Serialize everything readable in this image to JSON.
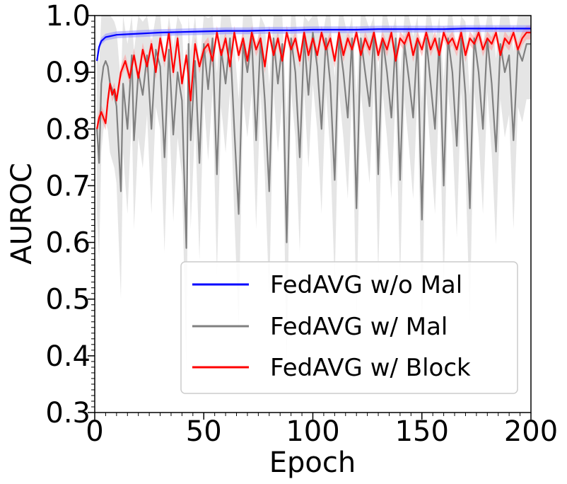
{
  "chart_data": {
    "type": "line",
    "xlabel": "Epoch",
    "ylabel": "AUROC",
    "xlim": [
      0,
      200
    ],
    "ylim": [
      0.3,
      1.0
    ],
    "xticks": [
      0,
      50,
      100,
      150,
      200
    ],
    "yticks": [
      0.3,
      0.4,
      0.5,
      0.6,
      0.7,
      0.8,
      0.9,
      1.0
    ],
    "xtick_labels": [
      "0",
      "50",
      "100",
      "150",
      "200"
    ],
    "ytick_labels": [
      "0.3",
      "0.4",
      "0.5",
      "0.6",
      "0.7",
      "0.8",
      "0.9",
      "1.0"
    ],
    "legend_position": "lower-right",
    "series": [
      {
        "name": "FedAVG w/o Mal",
        "color": "#0000ff",
        "band_color": "#9090ff",
        "x": [
          1,
          2,
          3,
          5,
          10,
          15,
          20,
          25,
          30,
          40,
          50,
          60,
          70,
          80,
          90,
          100,
          110,
          120,
          130,
          140,
          150,
          160,
          170,
          180,
          190,
          200
        ],
        "values": [
          0.92,
          0.945,
          0.955,
          0.962,
          0.966,
          0.967,
          0.968,
          0.969,
          0.97,
          0.971,
          0.972,
          0.973,
          0.973,
          0.974,
          0.974,
          0.975,
          0.975,
          0.975,
          0.976,
          0.976,
          0.976,
          0.976,
          0.977,
          0.977,
          0.977,
          0.977
        ]
      },
      {
        "name": "FedAVG w/ Mal",
        "color": "#808080",
        "band_color": "#d3d3d3",
        "x": [
          1,
          2,
          3,
          4,
          5,
          6,
          7,
          8,
          9,
          10,
          12,
          13,
          15,
          17,
          18,
          20,
          22,
          24,
          26,
          28,
          30,
          32,
          34,
          36,
          38,
          40,
          42,
          43,
          44,
          46,
          48,
          50,
          52,
          54,
          56,
          58,
          60,
          62,
          64,
          66,
          68,
          70,
          72,
          74,
          76,
          78,
          80,
          82,
          84,
          86,
          88,
          90,
          92,
          94,
          96,
          98,
          100,
          102,
          104,
          106,
          108,
          110,
          112,
          114,
          116,
          118,
          120,
          122,
          124,
          126,
          128,
          130,
          132,
          134,
          136,
          138,
          140,
          142,
          144,
          146,
          148,
          150,
          152,
          154,
          156,
          158,
          160,
          162,
          164,
          166,
          168,
          170,
          172,
          174,
          176,
          178,
          180,
          182,
          184,
          186,
          188,
          190,
          192,
          194,
          196,
          198,
          200
        ],
        "values": [
          0.8,
          0.74,
          0.88,
          0.91,
          0.92,
          0.91,
          0.88,
          0.87,
          0.86,
          0.84,
          0.69,
          0.88,
          0.8,
          0.93,
          0.78,
          0.9,
          0.86,
          0.93,
          0.8,
          0.94,
          0.91,
          0.75,
          0.94,
          0.79,
          0.9,
          0.85,
          0.59,
          0.95,
          0.78,
          0.92,
          0.74,
          0.95,
          0.87,
          0.96,
          0.72,
          0.94,
          0.88,
          0.96,
          0.8,
          0.65,
          0.95,
          0.9,
          0.96,
          0.78,
          0.96,
          0.85,
          0.69,
          0.96,
          0.88,
          0.95,
          0.6,
          0.96,
          0.9,
          0.75,
          0.96,
          0.86,
          0.97,
          0.91,
          0.8,
          0.96,
          0.88,
          0.71,
          0.96,
          0.9,
          0.82,
          0.96,
          0.66,
          0.96,
          0.9,
          0.84,
          0.97,
          0.72,
          0.96,
          0.9,
          0.82,
          0.96,
          0.71,
          0.95,
          0.89,
          0.82,
          0.96,
          0.64,
          0.96,
          0.88,
          0.8,
          0.96,
          0.7,
          0.96,
          0.9,
          0.77,
          0.96,
          0.86,
          0.66,
          0.96,
          0.9,
          0.8,
          0.96,
          0.88,
          0.76,
          0.95,
          0.9,
          0.93,
          0.78,
          0.94,
          0.92,
          0.95,
          0.95
        ]
      },
      {
        "name": "FedAVG w/ Block",
        "color": "#ff0000",
        "band_color": "#ff9a9a",
        "x": [
          1,
          2,
          3,
          4,
          5,
          6,
          7,
          8,
          9,
          10,
          12,
          14,
          16,
          18,
          20,
          22,
          24,
          26,
          28,
          30,
          32,
          34,
          36,
          38,
          40,
          42,
          44,
          46,
          48,
          50,
          52,
          54,
          56,
          58,
          60,
          62,
          64,
          66,
          68,
          70,
          72,
          74,
          76,
          78,
          80,
          82,
          84,
          86,
          88,
          90,
          92,
          94,
          96,
          98,
          100,
          102,
          104,
          106,
          108,
          110,
          112,
          114,
          116,
          118,
          120,
          122,
          124,
          126,
          128,
          130,
          132,
          134,
          136,
          138,
          140,
          142,
          144,
          146,
          148,
          150,
          152,
          154,
          156,
          158,
          160,
          162,
          164,
          166,
          168,
          170,
          172,
          174,
          176,
          178,
          180,
          182,
          184,
          186,
          188,
          190,
          192,
          194,
          196,
          198,
          200
        ],
        "values": [
          0.8,
          0.82,
          0.83,
          0.82,
          0.81,
          0.85,
          0.88,
          0.86,
          0.87,
          0.85,
          0.9,
          0.92,
          0.89,
          0.93,
          0.89,
          0.94,
          0.91,
          0.95,
          0.9,
          0.96,
          0.92,
          0.97,
          0.9,
          0.96,
          0.88,
          0.93,
          0.85,
          0.95,
          0.91,
          0.94,
          0.95,
          0.92,
          0.97,
          0.93,
          0.96,
          0.91,
          0.97,
          0.93,
          0.96,
          0.92,
          0.97,
          0.94,
          0.96,
          0.91,
          0.97,
          0.93,
          0.96,
          0.92,
          0.97,
          0.94,
          0.96,
          0.92,
          0.97,
          0.93,
          0.96,
          0.93,
          0.97,
          0.94,
          0.96,
          0.92,
          0.97,
          0.93,
          0.96,
          0.94,
          0.97,
          0.93,
          0.96,
          0.94,
          0.97,
          0.93,
          0.96,
          0.94,
          0.97,
          0.92,
          0.96,
          0.95,
          0.97,
          0.93,
          0.96,
          0.94,
          0.97,
          0.94,
          0.96,
          0.93,
          0.97,
          0.95,
          0.96,
          0.94,
          0.97,
          0.93,
          0.96,
          0.95,
          0.97,
          0.94,
          0.96,
          0.95,
          0.97,
          0.93,
          0.96,
          0.95,
          0.97,
          0.94,
          0.96,
          0.97,
          0.97
        ]
      }
    ]
  }
}
